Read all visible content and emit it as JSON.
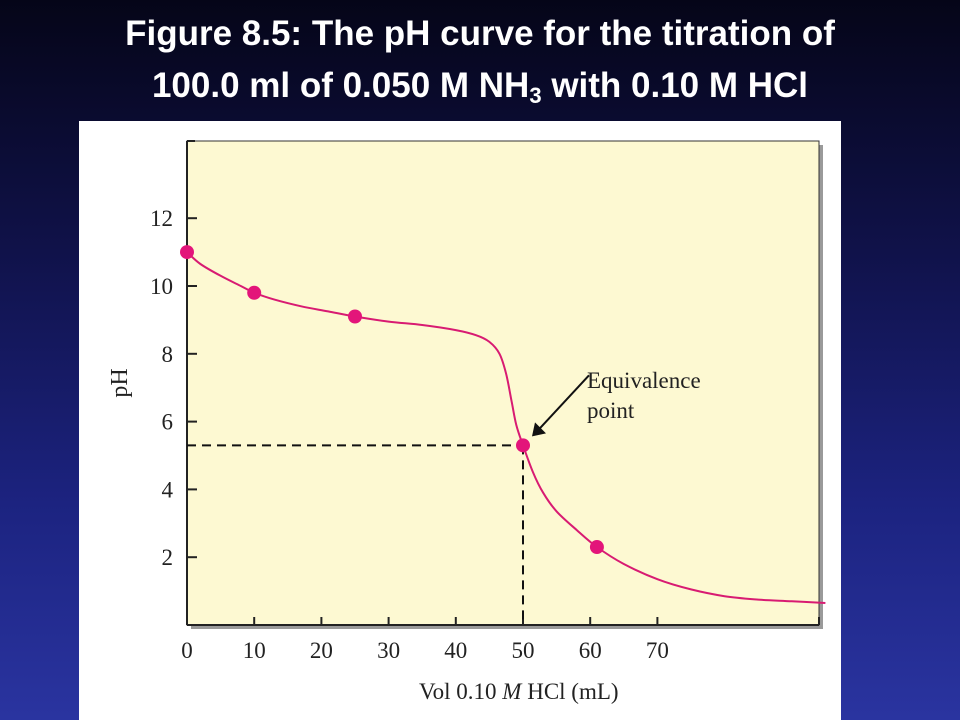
{
  "title": {
    "line1": "Figure 8.5:  The pH curve for the titration of",
    "line2_prefix": "100.0 ml of 0.050 M NH",
    "line2_sub": "3",
    "line2_suffix": " with 0.10 M HCl"
  },
  "colors": {
    "plot_background": "#fdf9d2",
    "curve": "#d81b72",
    "points": "#e3157a",
    "axis": "#222222"
  },
  "chart_data": {
    "type": "line",
    "title": "",
    "xlabel_prefix": "Vol 0.10 ",
    "xlabel_italic": "M",
    "xlabel_suffix": " HCl (mL)",
    "ylabel": "pH",
    "xlim": [
      0,
      95
    ],
    "ylim": [
      0,
      14
    ],
    "x_ticks": [
      0,
      10,
      20,
      30,
      40,
      50,
      60,
      70
    ],
    "y_ticks": [
      2,
      4,
      6,
      8,
      10,
      12
    ],
    "grid": false,
    "series": [
      {
        "values_xy": [
          [
            0,
            11.0
          ],
          [
            2,
            10.65
          ],
          [
            5,
            10.3
          ],
          [
            8,
            10.0
          ],
          [
            10,
            9.8
          ],
          [
            13,
            9.6
          ],
          [
            17,
            9.4
          ],
          [
            21,
            9.25
          ],
          [
            25,
            9.1
          ],
          [
            30,
            8.95
          ],
          [
            35,
            8.85
          ],
          [
            40,
            8.7
          ],
          [
            43,
            8.55
          ],
          [
            45,
            8.35
          ],
          [
            46.5,
            8.0
          ],
          [
            47.5,
            7.4
          ],
          [
            48.3,
            6.6
          ],
          [
            49,
            5.9
          ],
          [
            50,
            5.3
          ],
          [
            51.5,
            4.5
          ],
          [
            53,
            3.9
          ],
          [
            55,
            3.35
          ],
          [
            58,
            2.8
          ],
          [
            61,
            2.3
          ],
          [
            65,
            1.8
          ],
          [
            70,
            1.35
          ],
          [
            75,
            1.05
          ],
          [
            80,
            0.85
          ],
          [
            85,
            0.75
          ],
          [
            90,
            0.7
          ],
          [
            95,
            0.65
          ]
        ]
      }
    ],
    "markers": [
      [
        0,
        11.0
      ],
      [
        10,
        9.8
      ],
      [
        25,
        9.1
      ],
      [
        50,
        5.3
      ],
      [
        61,
        2.3
      ]
    ],
    "annotation": {
      "line1": "Equivalence",
      "line2": "point",
      "target": [
        50,
        5.3
      ]
    }
  }
}
